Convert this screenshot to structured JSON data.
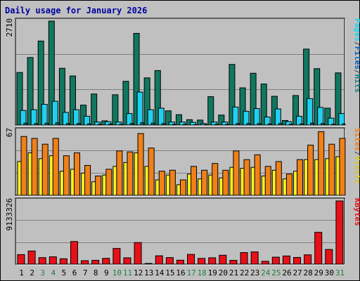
{
  "title": "Daily usage for January 2026",
  "colors": {
    "background": "#c0c0c0",
    "pages": "#107860",
    "files": "#20d0f0",
    "hits": "#108080",
    "visits": "#f8f020",
    "sites": "#f08018",
    "kbytes": "#e81018",
    "weekend_label": "#208040",
    "title": "#0000a0"
  },
  "chart_data": [
    {
      "type": "bar",
      "name": "hits-files-pages",
      "categories": [
        "1",
        "2",
        "3",
        "4",
        "5",
        "6",
        "7",
        "8",
        "9",
        "10",
        "11",
        "12",
        "13",
        "14",
        "15",
        "16",
        "17",
        "18",
        "19",
        "20",
        "21",
        "22",
        "23",
        "24",
        "25",
        "26",
        "27",
        "28",
        "29",
        "30",
        "31"
      ],
      "weekend_days": [
        "3",
        "4",
        "10",
        "11",
        "17",
        "18",
        "24",
        "25",
        "31"
      ],
      "y_max": 2710,
      "y_tick_label": "2710",
      "legend": [
        {
          "text": "Pages",
          "color": "#20d0f0"
        },
        {
          "text": "/",
          "color": "#404040"
        },
        {
          "text": "Files",
          "color": "#0060c0"
        },
        {
          "text": "/",
          "color": "#404040"
        },
        {
          "text": "Hits",
          "color": "#108080"
        }
      ],
      "series": [
        {
          "key": "hits",
          "values": [
            1370,
            1760,
            2190,
            2710,
            1480,
            1280,
            520,
            810,
            110,
            790,
            1140,
            2390,
            1230,
            1420,
            370,
            270,
            140,
            130,
            740,
            260,
            1580,
            970,
            1350,
            1070,
            750,
            120,
            770,
            1980,
            1470,
            440,
            1360
          ]
        },
        {
          "key": "files",
          "values": [
            380,
            400,
            540,
            620,
            330,
            400,
            230,
            80,
            90,
            80,
            300,
            860,
            400,
            440,
            80,
            80,
            70,
            40,
            80,
            80,
            470,
            360,
            430,
            210,
            420,
            90,
            230,
            690,
            460,
            180,
            300
          ]
        },
        {
          "key": "pages",
          "values": [
            50,
            40,
            50,
            60,
            40,
            40,
            30,
            20,
            30,
            20,
            40,
            60,
            50,
            40,
            20,
            20,
            10,
            10,
            20,
            20,
            40,
            40,
            40,
            30,
            40,
            20,
            30,
            50,
            40,
            20,
            30
          ]
        }
      ]
    },
    {
      "type": "bar",
      "name": "sites-visits",
      "y_max": 67,
      "y_tick_label": "67",
      "legend": [
        {
          "text": "Sites",
          "color": "#f08018"
        },
        {
          "text": "/",
          "color": "#404040"
        },
        {
          "text": "Visits",
          "color": "#d8c818"
        }
      ],
      "series": [
        {
          "key": "sites",
          "values": [
            61,
            59,
            53,
            59,
            41,
            44,
            31,
            20,
            27,
            46,
            45,
            64,
            49,
            25,
            26,
            16,
            30,
            26,
            33,
            26,
            46,
            37,
            42,
            30,
            35,
            22,
            37,
            52,
            66,
            53,
            59
          ]
        },
        {
          "key": "visits",
          "values": [
            35,
            44,
            38,
            41,
            25,
            27,
            23,
            14,
            21,
            30,
            34,
            44,
            30,
            16,
            21,
            11,
            22,
            17,
            21,
            18,
            29,
            28,
            29,
            20,
            26,
            17,
            25,
            37,
            37,
            38,
            40
          ]
        }
      ]
    },
    {
      "type": "bar",
      "name": "kbytes",
      "y_max": 9133326,
      "y_tick_label": "9133326",
      "legend": [
        {
          "text": "KBytes",
          "color": "#e81018"
        }
      ],
      "series": [
        {
          "key": "kbytes",
          "values": [
            1380000,
            1900000,
            940000,
            1060000,
            780000,
            3270000,
            500000,
            550000,
            840000,
            2270000,
            920000,
            3120000,
            100000,
            1210000,
            950000,
            570000,
            1410000,
            830000,
            920000,
            1290000,
            550000,
            1670000,
            1770000,
            410000,
            1010000,
            1180000,
            970000,
            1350000,
            4600000,
            2120000,
            9133326
          ]
        }
      ]
    }
  ]
}
